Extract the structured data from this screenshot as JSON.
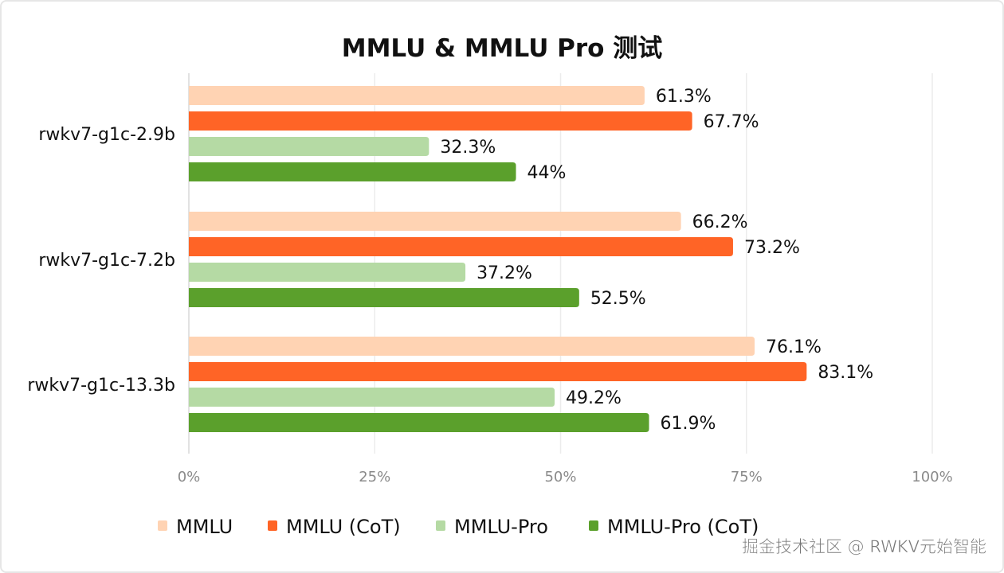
{
  "chart_data": {
    "type": "bar",
    "orientation": "horizontal",
    "title": "MMLU & MMLU Pro 测试",
    "categories": [
      "rwkv7-g1c-2.9b",
      "rwkv7-g1c-7.2b",
      "rwkv7-g1c-13.3b"
    ],
    "series": [
      {
        "name": "MMLU",
        "color": "#FFD3B3",
        "values": [
          61.3,
          66.2,
          76.1
        ],
        "labels": [
          "61.3%",
          "66.2%",
          "76.1%"
        ]
      },
      {
        "name": "MMLU (CoT)",
        "color": "#FF6426",
        "values": [
          67.7,
          73.2,
          83.1
        ],
        "labels": [
          "67.7%",
          "73.2%",
          "83.1%"
        ]
      },
      {
        "name": "MMLU-Pro",
        "color": "#B5DAA4",
        "values": [
          32.3,
          37.2,
          49.2
        ],
        "labels": [
          "32.3%",
          "37.2%",
          "49.2%"
        ]
      },
      {
        "name": "MMLU-Pro (CoT)",
        "color": "#5BA02C",
        "values": [
          44,
          52.5,
          61.9
        ],
        "labels": [
          "44%",
          "52.5%",
          "61.9%"
        ]
      }
    ],
    "xlim": [
      0,
      100
    ],
    "xticks": [
      "0%",
      "25%",
      "50%",
      "75%",
      "100%"
    ],
    "xlabel": "",
    "ylabel": "",
    "grid": true,
    "legend": "bottom"
  },
  "watermark": "掘金技术社区 @ RWKV元始智能"
}
